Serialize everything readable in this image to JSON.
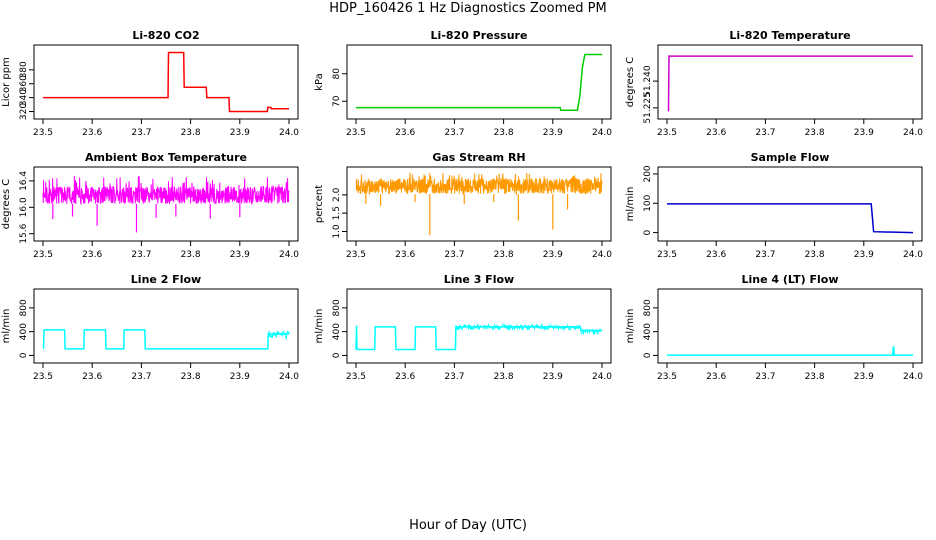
{
  "figure": {
    "title": "HDP_160426  1 Hz Diagnostics Zoomed PM",
    "xlabel": "Hour of Day (UTC)"
  },
  "chart_data": [
    {
      "id": "co2",
      "type": "line",
      "title": "Li-820 CO2",
      "ylabel": "Licor ppm",
      "color": "#ff0000",
      "xlim": [
        23.5,
        24.0
      ],
      "ylim": [
        315,
        410
      ],
      "xticks": [
        "23.5",
        "23.6",
        "23.7",
        "23.8",
        "23.9",
        "24.0"
      ],
      "yticks": [
        "320",
        "340",
        "360",
        "380"
      ],
      "x": [
        23.5,
        23.754,
        23.755,
        23.786,
        23.787,
        23.832,
        23.833,
        23.878,
        23.879,
        23.956,
        23.957,
        23.963,
        23.964,
        24.0
      ],
      "y": [
        340,
        340,
        405,
        405,
        355,
        355,
        340,
        340,
        320,
        320,
        326,
        326,
        324,
        324
      ]
    },
    {
      "id": "pressure",
      "type": "line",
      "title": "Li-820 Pressure",
      "ylabel": "kPa",
      "color": "#00cc00",
      "xlim": [
        23.5,
        24.0
      ],
      "ylim": [
        65,
        89
      ],
      "xticks": [
        "23.5",
        "23.6",
        "23.7",
        "23.8",
        "23.9",
        "24.0"
      ],
      "yticks": [
        "70",
        "80"
      ],
      "x": [
        23.5,
        23.915,
        23.916,
        23.95,
        23.955,
        23.96,
        23.965,
        24.0
      ],
      "y": [
        67.7,
        67.7,
        66.7,
        66.7,
        72,
        82,
        87,
        87
      ]
    },
    {
      "id": "temperature",
      "type": "line",
      "title": "Li-820 Temperature",
      "ylabel": "degrees C",
      "color": "#cc00cc",
      "xlim": [
        23.5,
        24.0
      ],
      "ylim": [
        51.221,
        51.258
      ],
      "xticks": [
        "23.5",
        "23.6",
        "23.7",
        "23.8",
        "23.9",
        "24.0"
      ],
      "yticks": [
        "51.225",
        "51.240"
      ],
      "x": [
        23.503,
        23.504,
        23.506,
        24.0
      ],
      "y": [
        51.223,
        51.254,
        51.254,
        51.254
      ]
    },
    {
      "id": "ambient",
      "type": "line",
      "title": "Ambient Box Temperature",
      "ylabel": "degrees C",
      "color": "#ff00ff",
      "xlim": [
        23.5,
        24.0
      ],
      "ylim": [
        15.55,
        16.55
      ],
      "xticks": [
        "23.5",
        "23.6",
        "23.7",
        "23.8",
        "23.9",
        "24.0"
      ],
      "yticks": [
        "15.6",
        "16.0",
        "16.4"
      ],
      "band": [
        16.05,
        16.32
      ],
      "spike_max": 16.48,
      "dips": [
        [
          23.52,
          15.82
        ],
        [
          23.56,
          15.86
        ],
        [
          23.61,
          15.72
        ],
        [
          23.69,
          15.62
        ],
        [
          23.73,
          15.84
        ],
        [
          23.77,
          15.86
        ],
        [
          23.84,
          15.83
        ],
        [
          23.9,
          15.85
        ]
      ]
    },
    {
      "id": "rh",
      "type": "line",
      "title": "Gas Stream RH",
      "ylabel": "percent",
      "color": "#ff9900",
      "xlim": [
        23.5,
        24.0
      ],
      "ylim": [
        0.85,
        2.65
      ],
      "xticks": [
        "23.5",
        "23.6",
        "23.7",
        "23.8",
        "23.9",
        "24.0"
      ],
      "yticks": [
        "1.0",
        "1.5",
        "2.0"
      ],
      "band": [
        2.02,
        2.45
      ],
      "spike_max": 2.62,
      "dips": [
        [
          23.52,
          1.75
        ],
        [
          23.55,
          1.7
        ],
        [
          23.62,
          1.8
        ],
        [
          23.65,
          0.9
        ],
        [
          23.72,
          1.75
        ],
        [
          23.78,
          1.8
        ],
        [
          23.83,
          1.3
        ],
        [
          23.9,
          1.05
        ],
        [
          23.93,
          1.6
        ]
      ]
    },
    {
      "id": "sample_flow",
      "type": "line",
      "title": "Sample Flow",
      "ylabel": "ml/min",
      "color": "#0000cc",
      "xlim": [
        23.5,
        24.0
      ],
      "ylim": [
        -15,
        210
      ],
      "xticks": [
        "23.5",
        "23.6",
        "23.7",
        "23.8",
        "23.9",
        "24.0"
      ],
      "yticks": [
        "0",
        "100",
        "200"
      ],
      "x": [
        23.5,
        23.915,
        23.917,
        23.92,
        24.0
      ],
      "y": [
        98,
        98,
        60,
        3,
        0
      ]
    },
    {
      "id": "line2",
      "type": "line",
      "title": "Line 2 Flow",
      "ylabel": "ml/min",
      "color": "#00ffff",
      "xlim": [
        23.5,
        24.0
      ],
      "ylim": [
        -60,
        1050
      ],
      "xticks": [
        "23.5",
        "23.6",
        "23.7",
        "23.8",
        "23.9",
        "24.0"
      ],
      "yticks": [
        "0",
        "400",
        "800"
      ],
      "x": [
        23.5,
        23.501,
        23.502,
        23.544,
        23.545,
        23.583,
        23.584,
        23.627,
        23.628,
        23.664,
        23.665,
        23.707,
        23.708,
        23.957,
        23.958,
        24.0
      ],
      "y": [
        120,
        120,
        430,
        430,
        110,
        110,
        430,
        430,
        110,
        110,
        430,
        430,
        110,
        110,
        360,
        360
      ],
      "noisy_ranges": [
        [
          23.957,
          24.0,
          290,
          420
        ]
      ]
    },
    {
      "id": "line3",
      "type": "line",
      "title": "Line 3 Flow",
      "ylabel": "ml/min",
      "color": "#00ffff",
      "xlim": [
        23.5,
        24.0
      ],
      "ylim": [
        -60,
        1050
      ],
      "xticks": [
        "23.5",
        "23.6",
        "23.7",
        "23.8",
        "23.9",
        "24.0"
      ],
      "yticks": [
        "0",
        "400",
        "800"
      ],
      "x": [
        23.5,
        23.501,
        23.502,
        23.509,
        23.51,
        23.538,
        23.539,
        23.58,
        23.581,
        23.62,
        23.621,
        23.662,
        23.663,
        23.702,
        23.703,
        23.956,
        23.957,
        24.0
      ],
      "y": [
        100,
        500,
        100,
        100,
        100,
        100,
        480,
        480,
        100,
        100,
        480,
        480,
        100,
        100,
        480,
        480,
        420,
        420
      ],
      "noisy_ranges": [
        [
          23.703,
          23.956,
          430,
          520
        ],
        [
          23.957,
          24.0,
          360,
          440
        ]
      ]
    },
    {
      "id": "line4",
      "type": "line",
      "title": "Line 4 (LT) Flow",
      "ylabel": "ml/min",
      "color": "#00ffff",
      "xlim": [
        23.5,
        24.0
      ],
      "ylim": [
        -60,
        1050
      ],
      "xticks": [
        "23.5",
        "23.6",
        "23.7",
        "23.8",
        "23.9",
        "24.0"
      ],
      "yticks": [
        "0",
        "400",
        "800"
      ],
      "x": [
        23.5,
        23.959,
        23.96,
        23.961,
        23.962,
        24.0
      ],
      "y": [
        5,
        5,
        140,
        140,
        5,
        5
      ]
    }
  ]
}
